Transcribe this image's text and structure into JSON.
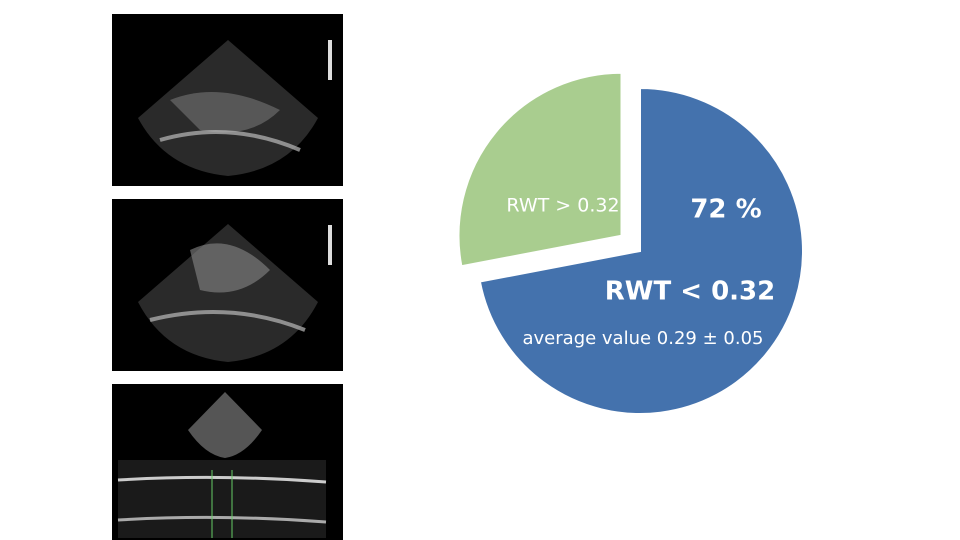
{
  "chart_data": {
    "type": "pie",
    "categories": [
      "RWT < 0.32",
      "RWT > 0.32"
    ],
    "values": [
      72,
      28
    ],
    "value_labels": [
      "72 %",
      null
    ],
    "colors": [
      "#4472ad",
      "#a9cd8f"
    ],
    "exploded": [
      false,
      true
    ],
    "annotation": "average value 0.29 ± 0.05"
  }
}
